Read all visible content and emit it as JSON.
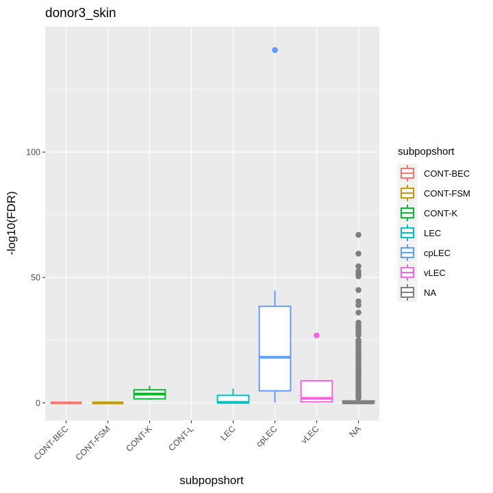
{
  "chart_data": {
    "type": "box",
    "title": "donor3_skin",
    "xlabel": "subpopshort",
    "ylabel": "-log10(FDR)",
    "ylim": [
      -7,
      150
    ],
    "y_ticks": [
      0,
      50,
      100
    ],
    "y_tick_labels": [
      "0",
      "50",
      "100"
    ],
    "categories": [
      "CONT-BEC",
      "CONT-FSM",
      "CONT-K",
      "CONT-L",
      "LEC",
      "cpLEC",
      "vLEC",
      "NA"
    ],
    "grid": true,
    "legend": {
      "title": "subpopshort",
      "position": "right",
      "entries": [
        "CONT-BEC",
        "CONT-FSM",
        "CONT-K",
        "LEC",
        "cpLEC",
        "vLEC",
        "NA"
      ]
    },
    "colors": {
      "CONT-BEC": "#F8766D",
      "CONT-FSM": "#C49A00",
      "CONT-K": "#00B731",
      "LEC": "#00BFC4",
      "cpLEC": "#619CFF",
      "vLEC": "#F564E3",
      "NA": "#7F7F7F"
    },
    "boxes": [
      {
        "category": "CONT-BEC",
        "min": 0,
        "q1": 0,
        "median": 0,
        "q3": 0,
        "max": 0,
        "outliers": []
      },
      {
        "category": "CONT-FSM",
        "min": 0,
        "q1": 0,
        "median": 0,
        "q3": 0,
        "max": 0,
        "outliers": []
      },
      {
        "category": "CONT-K",
        "min": 1.2,
        "q1": 1.6,
        "median": 3.5,
        "q3": 5.2,
        "max": 6.8,
        "outliers": []
      },
      {
        "category": "LEC",
        "min": 0,
        "q1": 0,
        "median": 0.2,
        "q3": 3.0,
        "max": 5.7,
        "outliers": []
      },
      {
        "category": "cpLEC",
        "min": 0,
        "q1": 4.8,
        "median": 18.2,
        "q3": 38.5,
        "max": 44.8,
        "outliers": [
          140.7
        ]
      },
      {
        "category": "vLEC",
        "min": 0,
        "q1": 0.4,
        "median": 1.8,
        "q3": 8.8,
        "max": 8.8,
        "outliers": [
          26.9
        ]
      },
      {
        "category": "NA",
        "min": 0,
        "q1": 0,
        "median": 0,
        "q3": 0.8,
        "max": 1.5,
        "outliers": [
          2,
          3,
          4,
          5,
          6,
          7,
          8,
          9,
          10,
          11,
          12,
          13,
          14,
          15,
          16,
          17,
          18,
          19,
          20,
          21,
          22,
          23,
          24,
          25,
          27,
          28,
          29,
          30,
          31,
          32,
          36,
          39,
          40.5,
          45,
          50.5,
          51.5,
          52.5,
          54.5,
          59.5,
          67
        ]
      }
    ]
  }
}
